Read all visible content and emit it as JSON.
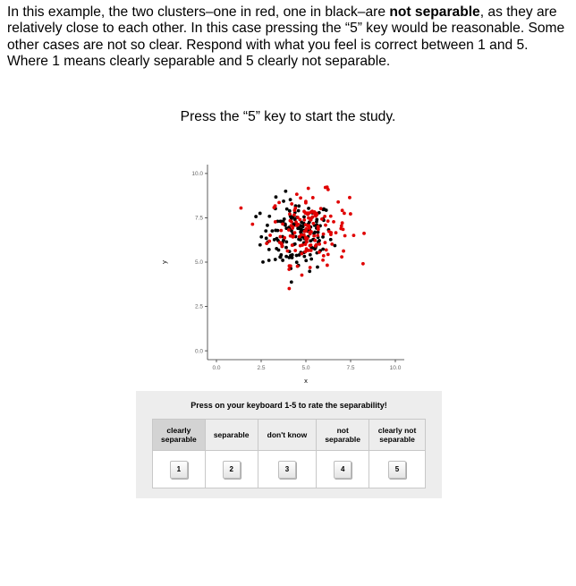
{
  "instructions": {
    "part1": "In this example, the two clusters–one in red, one in black–are ",
    "bold": "not separable",
    "part2": ", as they are relatively close to each other. In this case pressing the “5” key would be reasonable. Some other cases are not so clear. Respond with what you feel is correct between 1 and 5. Where 1 means clearly separable and 5 clearly not separable."
  },
  "start_prompt": "Press the “5” key to start the study.",
  "chart_data": {
    "type": "scatter",
    "xlabel": "x",
    "ylabel": "y",
    "xlim": [
      -0.5,
      10.5
    ],
    "ylim": [
      -0.5,
      10.5
    ],
    "x_ticks": [
      "0.0",
      "2.5",
      "5.0",
      "7.5",
      "10.0"
    ],
    "y_ticks": [
      "0.0",
      "2.5",
      "5.0",
      "7.5",
      "10.0"
    ],
    "grid": false,
    "legend": "none",
    "series": [
      {
        "color": "#000000",
        "center": [
          4.5,
          6.5
        ],
        "spread": [
          1.0,
          1.0
        ],
        "count": 150
      },
      {
        "color": "#e00000",
        "center": [
          5.2,
          6.9
        ],
        "spread": [
          1.1,
          1.0
        ],
        "count": 150
      }
    ]
  },
  "rating": {
    "title": "Press on your keyboard 1-5 to rate the separability!",
    "options": [
      {
        "label_line1": "clearly",
        "label_line2": "separable",
        "key": "1"
      },
      {
        "label_line1": "separable",
        "label_line2": "",
        "key": "2"
      },
      {
        "label_line1": "don't know",
        "label_line2": "",
        "key": "3"
      },
      {
        "label_line1": "not",
        "label_line2": "separable",
        "key": "4"
      },
      {
        "label_line1": "clearly not",
        "label_line2": "separable",
        "key": "5"
      }
    ]
  }
}
